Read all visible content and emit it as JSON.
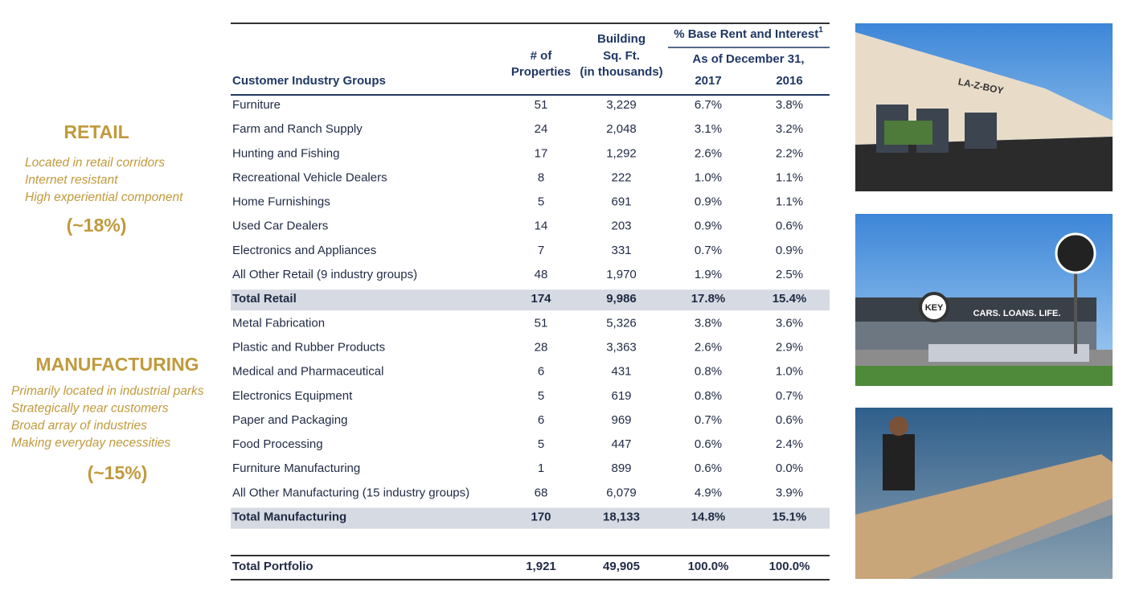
{
  "sidebar": {
    "retail": {
      "title": "RETAIL",
      "lines": [
        "Located in retail corridors",
        "Internet resistant",
        "High experiential component"
      ],
      "share": "(~18%)"
    },
    "manufacturing": {
      "title": "MANUFACTURING",
      "lines": [
        "Primarily located in industrial parks",
        "Strategically near customers",
        "Broad array of industries",
        "Making everyday necessities"
      ],
      "share": "(~15%)"
    }
  },
  "table": {
    "header": {
      "group": "Customer Industry Groups",
      "properties": [
        "# of",
        "Properties"
      ],
      "sqft": [
        "Building",
        "Sq. Ft.",
        "(in thousands)"
      ],
      "rent": "% Base Rent and Interest",
      "footnote": "1",
      "as_of": "As of December 31,",
      "years": [
        "2017",
        "2016"
      ]
    },
    "sections": [
      {
        "rows": [
          [
            "Furniture",
            "51",
            "3,229",
            "6.7%",
            "3.8%"
          ],
          [
            "Farm and Ranch Supply",
            "24",
            "2,048",
            "3.1%",
            "3.2%"
          ],
          [
            "Hunting and Fishing",
            "17",
            "1,292",
            "2.6%",
            "2.2%"
          ],
          [
            "Recreational Vehicle Dealers",
            "8",
            "222",
            "1.0%",
            "1.1%"
          ],
          [
            "Home Furnishings",
            "5",
            "691",
            "0.9%",
            "1.1%"
          ],
          [
            "Used Car Dealers",
            "14",
            "203",
            "0.9%",
            "0.6%"
          ],
          [
            "Electronics and Appliances",
            "7",
            "331",
            "0.7%",
            "0.9%"
          ],
          [
            "All Other Retail (9 industry groups)",
            "48",
            "1,970",
            "1.9%",
            "2.5%"
          ]
        ],
        "total": [
          "Total Retail",
          "174",
          "9,986",
          "17.8%",
          "15.4%"
        ]
      },
      {
        "rows": [
          [
            "Metal Fabrication",
            "51",
            "5,326",
            "3.8%",
            "3.6%"
          ],
          [
            "Plastic and Rubber Products",
            "28",
            "3,363",
            "2.6%",
            "2.9%"
          ],
          [
            "Medical and Pharmaceutical",
            "6",
            "431",
            "0.8%",
            "1.0%"
          ],
          [
            "Electronics Equipment",
            "5",
            "619",
            "0.8%",
            "0.7%"
          ],
          [
            "Paper and Packaging",
            "6",
            "969",
            "0.7%",
            "0.6%"
          ],
          [
            "Food Processing",
            "5",
            "447",
            "0.6%",
            "2.4%"
          ],
          [
            "Furniture  Manufacturing",
            "1",
            "899",
            "0.6%",
            "0.0%"
          ],
          [
            "All Other Manufacturing (15 industry groups)",
            "68",
            "6,079",
            "4.9%",
            "3.9%"
          ]
        ],
        "total": [
          "Total Manufacturing",
          "170",
          "18,133",
          "14.8%",
          "15.1%"
        ]
      }
    ],
    "portfolio": [
      "Total Portfolio",
      "1,921",
      "49,905",
      "100.0%",
      "100.0%"
    ]
  },
  "photos": {
    "store_sign": "LA-Z-BOY",
    "dealer_sign": "KEY",
    "dealer_banner": "CARS. LOANS. LIFE."
  }
}
